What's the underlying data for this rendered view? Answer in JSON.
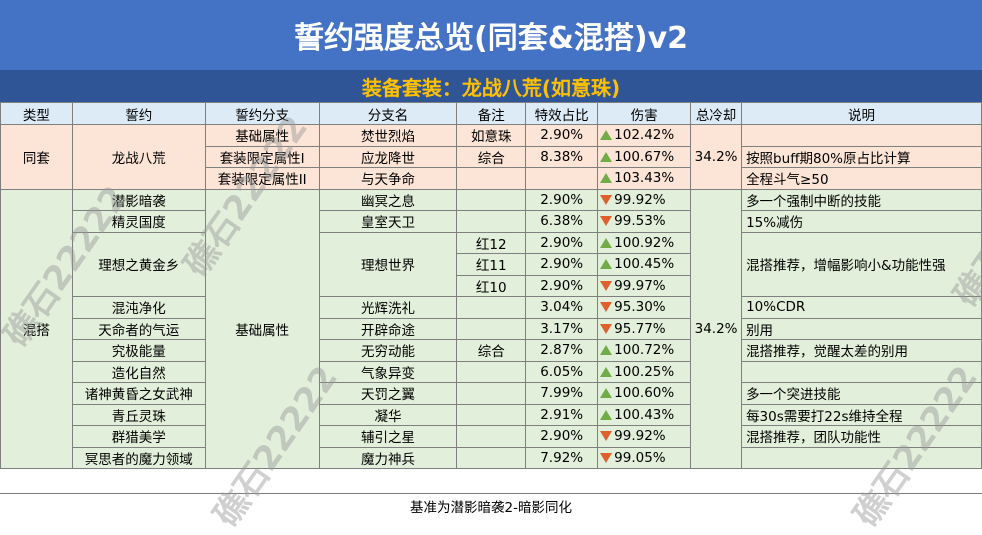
{
  "title": "誓约强度总览(同套&混搭)v2",
  "subtitle": "装备套装：龙战八荒(如意珠)",
  "headers": [
    "类型",
    "誓约",
    "誓约分支",
    "分支名",
    "备注",
    "特效占比",
    "伤害",
    "总冷却",
    "说明"
  ],
  "group_tong": {
    "type": "同套",
    "pledge": "龙战八荒",
    "cooldown": "34.2%"
  },
  "group_hun": {
    "type": "混搭",
    "branch": "基础属性",
    "cooldown": "34.2%"
  },
  "tong_rows": [
    {
      "branch": "基础属性",
      "name": "焚世烈焰",
      "note": "如意珠",
      "pct": "2.90%",
      "dmg": "102.42%",
      "dir": "up",
      "desc": ""
    },
    {
      "branch": "套装限定属性I",
      "name": "应龙降世",
      "note": "综合",
      "pct": "8.38%",
      "dmg": "100.67%",
      "dir": "up",
      "desc": "按照buff期80%原占比计算"
    },
    {
      "branch": "套装限定属性II",
      "name": "与天争命",
      "note": "",
      "pct": "",
      "dmg": "103.43%",
      "dir": "up",
      "desc": "全程斗气≥50"
    }
  ],
  "hun_rows": [
    {
      "pledge": "潜影暗袭",
      "name": "幽冥之息",
      "note": "",
      "pct": "2.90%",
      "dmg": "99.92%",
      "dir": "down",
      "desc": "多一个强制中断的技能"
    },
    {
      "pledge": "精灵国度",
      "name": "皇室天卫",
      "note": "",
      "pct": "6.38%",
      "dmg": "99.53%",
      "dir": "down",
      "desc": "15%减伤"
    },
    {
      "pledge": "理想之黄金乡",
      "name": "理想世界",
      "note": "红12",
      "pct": "2.90%",
      "dmg": "100.92%",
      "dir": "up",
      "desc": "混搭推荐，增幅影响小&功能性强"
    },
    {
      "pledge": "",
      "name": "",
      "note": "红11",
      "pct": "2.90%",
      "dmg": "100.45%",
      "dir": "up",
      "desc": ""
    },
    {
      "pledge": "",
      "name": "",
      "note": "红10",
      "pct": "2.90%",
      "dmg": "99.97%",
      "dir": "down",
      "desc": ""
    },
    {
      "pledge": "混沌净化",
      "name": "光辉洗礼",
      "note": "",
      "pct": "3.04%",
      "dmg": "95.30%",
      "dir": "down",
      "desc": "10%CDR"
    },
    {
      "pledge": "天命者的气运",
      "name": "开辟命途",
      "note": "",
      "pct": "3.17%",
      "dmg": "95.77%",
      "dir": "down",
      "desc": "别用"
    },
    {
      "pledge": "究极能量",
      "name": "无穷动能",
      "note": "综合",
      "pct": "2.87%",
      "dmg": "100.72%",
      "dir": "up",
      "desc": "混搭推荐，觉醒太差的别用"
    },
    {
      "pledge": "造化自然",
      "name": "气象异变",
      "note": "",
      "pct": "6.05%",
      "dmg": "100.25%",
      "dir": "up",
      "desc": ""
    },
    {
      "pledge": "诸神黄昏之女武神",
      "name": "天罚之翼",
      "note": "",
      "pct": "7.99%",
      "dmg": "100.60%",
      "dir": "up",
      "desc": "多一个突进技能"
    },
    {
      "pledge": "青丘灵珠",
      "name": "凝华",
      "note": "",
      "pct": "2.91%",
      "dmg": "100.43%",
      "dir": "up",
      "desc": "每30s需要打22s维持全程"
    },
    {
      "pledge": "群猎美学",
      "name": "辅引之星",
      "note": "",
      "pct": "2.90%",
      "dmg": "99.92%",
      "dir": "down",
      "desc": "混搭推荐，团队功能性"
    },
    {
      "pledge": "冥思者的魔力领域",
      "name": "魔力神兵",
      "note": "",
      "pct": "7.92%",
      "dmg": "99.05%",
      "dir": "down",
      "desc": ""
    }
  ],
  "footer": "基准为潜影暗袭2-暗影同化",
  "watermark": "礁石22222",
  "colors": {
    "title_bg": "#4472c4",
    "subtitle_bg": "#2f5597",
    "subtitle_text": "#ffc000",
    "header_bg": "#ddebf7",
    "tong_bg": "#fce4d6",
    "hun_bg": "#e2efda",
    "up": "#70ad47",
    "down": "#e0602b"
  }
}
